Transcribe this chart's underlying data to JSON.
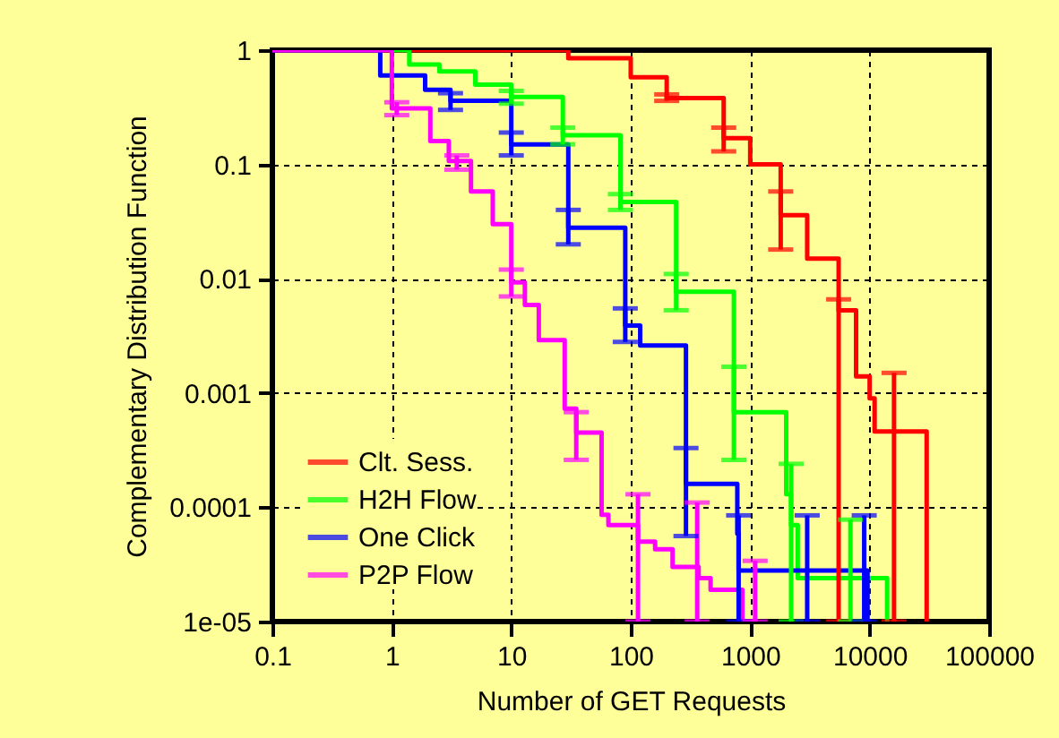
{
  "chart_data": {
    "type": "step",
    "xlabel": "Number of GET Requests",
    "ylabel": "Complementary Distribution Function",
    "log": "xy",
    "grid": true,
    "legend": "bottom left",
    "xlim": [
      0.1,
      100000
    ],
    "ylim": [
      1e-05,
      1
    ],
    "xticks": [
      0.1,
      1,
      10,
      100,
      1000,
      10000,
      100000
    ],
    "yticks": [
      {
        "value": 1e-05,
        "label": "1e-05"
      },
      0.0001,
      0.001,
      0.01,
      0.1,
      1
    ],
    "series": [
      {
        "name": "Clt. Sess.",
        "color": "#ff0000",
        "x": [
          0.1,
          12,
          30,
          100,
          200,
          600,
          1000,
          1800,
          3000,
          5500,
          7700,
          10000,
          11000,
          16000,
          30000
        ],
        "values": [
          1,
          1,
          0.85,
          0.58,
          0.38,
          0.17,
          0.1,
          0.036,
          0.015,
          0.0053,
          0.0014,
          0.0009,
          0.00046,
          0.00046,
          1e-05
        ],
        "errors": [
          null,
          null,
          null,
          null,
          [
            0.36,
            0.41
          ],
          [
            0.13,
            0.21
          ],
          null,
          [
            0.018,
            0.058
          ],
          null,
          [
            1e-05,
            0.0066
          ],
          null,
          null,
          null,
          [
            1e-05,
            0.0015
          ],
          null
        ]
      },
      {
        "name": "H2H Flow",
        "color": "#00ff00",
        "x": [
          1,
          1.4,
          2.5,
          5,
          10,
          27,
          82,
          240,
          730,
          2000,
          2200,
          2500,
          6900,
          14000
        ],
        "values": [
          1,
          0.75,
          0.65,
          0.5,
          0.39,
          0.18,
          0.047,
          0.0077,
          0.00068,
          0.00013,
          7e-05,
          2.4e-05,
          2.4e-05,
          1e-05
        ],
        "errors": [
          null,
          null,
          null,
          null,
          [
            0.34,
            0.44
          ],
          [
            0.15,
            0.21
          ],
          [
            0.04,
            0.055
          ],
          [
            0.0053,
            0.011
          ],
          [
            0.00026,
            0.0017
          ],
          null,
          [
            1e-05,
            0.00024
          ],
          null,
          [
            1e-05,
            7.8e-05
          ],
          null
        ]
      },
      {
        "name": "One Click",
        "color": "#0000ff",
        "x": [
          0.1,
          0.8,
          1.9,
          3.1,
          10,
          30,
          90,
          120,
          290,
          780,
          800,
          3000,
          9000,
          9600
        ],
        "values": [
          1,
          0.6,
          0.45,
          0.36,
          0.15,
          0.028,
          0.0039,
          0.0026,
          0.00016,
          5.9e-05,
          2.8e-05,
          2.8e-05,
          2.8e-05,
          1e-05
        ],
        "errors": [
          null,
          null,
          null,
          [
            0.3,
            0.42
          ],
          [
            0.12,
            0.19
          ],
          [
            0.02,
            0.04
          ],
          [
            0.0028,
            0.0055
          ],
          null,
          [
            5.6e-05,
            0.00033
          ],
          null,
          [
            1e-05,
            8.5e-05
          ],
          [
            1e-05,
            8.5e-05
          ],
          [
            1e-05,
            8.5e-05
          ],
          null
        ]
      },
      {
        "name": "P2P Flow",
        "color": "#ff00ff",
        "x": [
          0.1,
          1,
          1.1,
          2.1,
          3.0,
          3.5,
          4.6,
          7,
          10,
          13,
          17,
          28,
          35,
          57,
          65,
          115,
          160,
          224,
          360,
          370,
          466,
          860,
          1100
        ],
        "values": [
          1,
          0.31,
          0.31,
          0.16,
          0.107,
          0.107,
          0.058,
          0.03,
          0.0093,
          0.0059,
          0.0029,
          0.00073,
          0.00045,
          8.6e-05,
          7e-05,
          5e-05,
          4.3e-05,
          3e-05,
          3e-05,
          2.4e-05,
          1.9e-05,
          1e-05,
          1e-05
        ],
        "errors": [
          null,
          null,
          [
            0.27,
            0.35
          ],
          null,
          null,
          [
            0.09,
            0.12
          ],
          null,
          null,
          [
            0.007,
            0.012
          ],
          null,
          null,
          null,
          [
            0.00026,
            0.00068
          ],
          null,
          null,
          [
            1e-05,
            0.00013
          ],
          null,
          null,
          [
            1e-05,
            0.00011
          ],
          null,
          null,
          null,
          [
            1e-05,
            3.4e-05
          ]
        ]
      }
    ]
  }
}
